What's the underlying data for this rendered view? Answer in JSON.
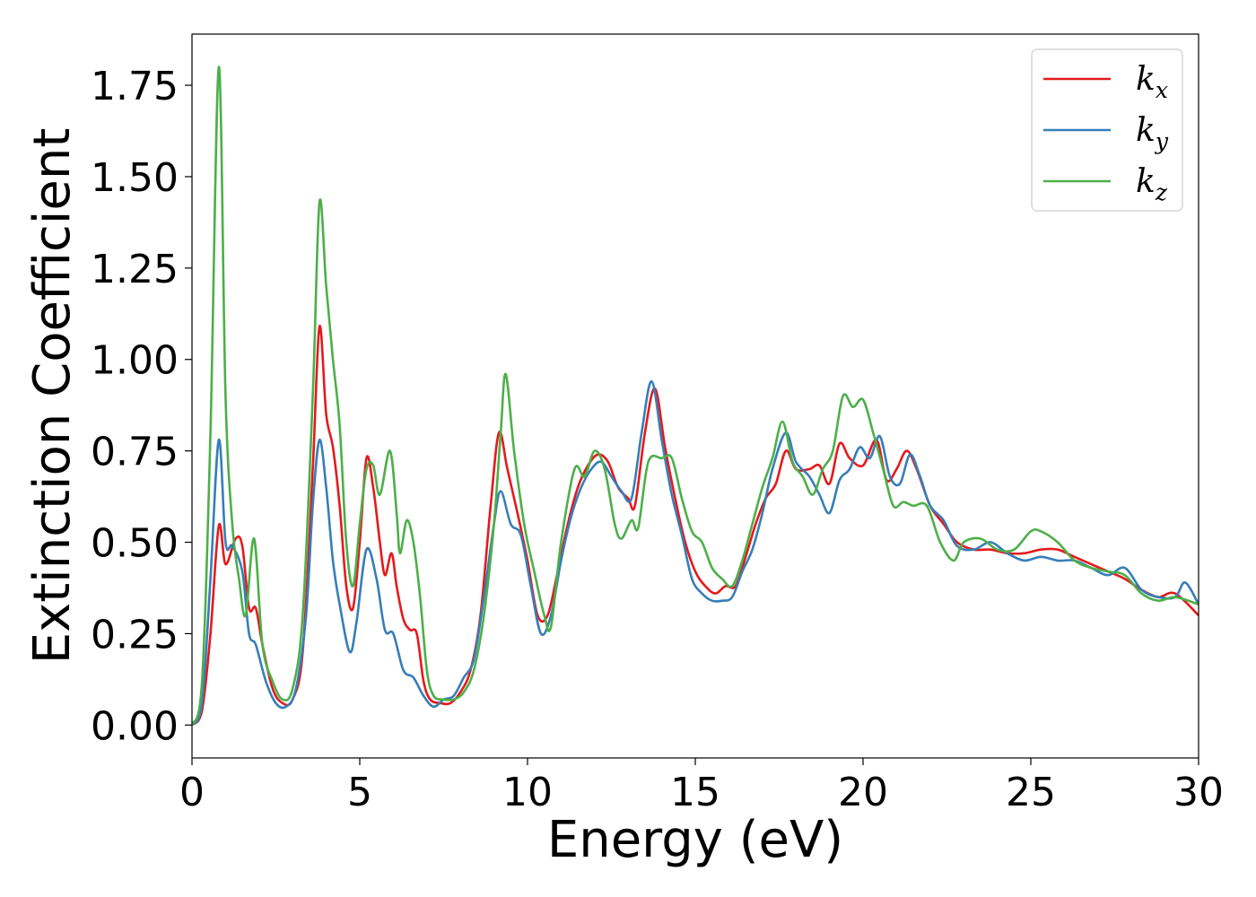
{
  "chart_data": {
    "type": "line",
    "xlabel": "Energy (eV)",
    "ylabel": "Extinction Coefficient",
    "xlim": [
      0,
      30
    ],
    "ylim": [
      -0.09,
      1.89
    ],
    "xticks": [
      {
        "value": 0,
        "label": "0"
      },
      {
        "value": 5,
        "label": "5"
      },
      {
        "value": 10,
        "label": "10"
      },
      {
        "value": 15,
        "label": "15"
      },
      {
        "value": 20,
        "label": "20"
      },
      {
        "value": 25,
        "label": "25"
      },
      {
        "value": 30,
        "label": "30"
      }
    ],
    "yticks": [
      {
        "value": 0.0,
        "label": "0.00"
      },
      {
        "value": 0.25,
        "label": "0.25"
      },
      {
        "value": 0.5,
        "label": "0.50"
      },
      {
        "value": 0.75,
        "label": "0.75"
      },
      {
        "value": 1.0,
        "label": "1.00"
      },
      {
        "value": 1.25,
        "label": "1.25"
      },
      {
        "value": 1.5,
        "label": "1.50"
      },
      {
        "value": 1.75,
        "label": "1.75"
      }
    ],
    "grid": false,
    "legend_position": "top-right",
    "series": [
      {
        "name": "k",
        "subscript": "x",
        "color": "#e41a1c",
        "points": [
          [
            0,
            0.0
          ],
          [
            0.3,
            0.04
          ],
          [
            0.55,
            0.25
          ],
          [
            0.8,
            0.545
          ],
          [
            1.0,
            0.44
          ],
          [
            1.3,
            0.51
          ],
          [
            1.5,
            0.49
          ],
          [
            1.7,
            0.32
          ],
          [
            1.9,
            0.32
          ],
          [
            2.1,
            0.22
          ],
          [
            2.4,
            0.1
          ],
          [
            2.7,
            0.06
          ],
          [
            3.0,
            0.07
          ],
          [
            3.3,
            0.2
          ],
          [
            3.6,
            0.7
          ],
          [
            3.8,
            1.09
          ],
          [
            4.0,
            0.85
          ],
          [
            4.2,
            0.76
          ],
          [
            4.4,
            0.6
          ],
          [
            4.6,
            0.38
          ],
          [
            4.8,
            0.32
          ],
          [
            5.0,
            0.5
          ],
          [
            5.2,
            0.73
          ],
          [
            5.4,
            0.65
          ],
          [
            5.6,
            0.5
          ],
          [
            5.75,
            0.41
          ],
          [
            5.95,
            0.47
          ],
          [
            6.1,
            0.38
          ],
          [
            6.3,
            0.29
          ],
          [
            6.5,
            0.26
          ],
          [
            6.7,
            0.25
          ],
          [
            6.9,
            0.12
          ],
          [
            7.1,
            0.07
          ],
          [
            7.4,
            0.06
          ],
          [
            7.7,
            0.06
          ],
          [
            8.0,
            0.09
          ],
          [
            8.3,
            0.15
          ],
          [
            8.6,
            0.3
          ],
          [
            8.9,
            0.6
          ],
          [
            9.15,
            0.8
          ],
          [
            9.4,
            0.7
          ],
          [
            9.7,
            0.58
          ],
          [
            10.0,
            0.45
          ],
          [
            10.3,
            0.3
          ],
          [
            10.6,
            0.3
          ],
          [
            10.9,
            0.42
          ],
          [
            11.2,
            0.55
          ],
          [
            11.5,
            0.65
          ],
          [
            11.8,
            0.71
          ],
          [
            12.1,
            0.74
          ],
          [
            12.4,
            0.72
          ],
          [
            12.7,
            0.65
          ],
          [
            13.0,
            0.62
          ],
          [
            13.2,
            0.6
          ],
          [
            13.5,
            0.8
          ],
          [
            13.8,
            0.92
          ],
          [
            14.1,
            0.76
          ],
          [
            14.4,
            0.62
          ],
          [
            14.7,
            0.5
          ],
          [
            15.0,
            0.42
          ],
          [
            15.3,
            0.38
          ],
          [
            15.6,
            0.36
          ],
          [
            15.9,
            0.38
          ],
          [
            16.2,
            0.38
          ],
          [
            16.5,
            0.46
          ],
          [
            16.8,
            0.55
          ],
          [
            17.1,
            0.62
          ],
          [
            17.4,
            0.66
          ],
          [
            17.7,
            0.75
          ],
          [
            18.0,
            0.7
          ],
          [
            18.4,
            0.7
          ],
          [
            18.7,
            0.71
          ],
          [
            19.0,
            0.66
          ],
          [
            19.3,
            0.77
          ],
          [
            19.6,
            0.73
          ],
          [
            20.0,
            0.71
          ],
          [
            20.4,
            0.78
          ],
          [
            20.7,
            0.67
          ],
          [
            21.0,
            0.7
          ],
          [
            21.3,
            0.75
          ],
          [
            21.6,
            0.7
          ],
          [
            22.0,
            0.6
          ],
          [
            22.4,
            0.55
          ],
          [
            22.8,
            0.5
          ],
          [
            23.3,
            0.48
          ],
          [
            23.8,
            0.48
          ],
          [
            24.3,
            0.47
          ],
          [
            24.8,
            0.47
          ],
          [
            25.3,
            0.48
          ],
          [
            25.8,
            0.48
          ],
          [
            26.3,
            0.46
          ],
          [
            26.8,
            0.44
          ],
          [
            27.3,
            0.42
          ],
          [
            27.8,
            0.4
          ],
          [
            28.3,
            0.37
          ],
          [
            28.8,
            0.35
          ],
          [
            29.3,
            0.36
          ],
          [
            30,
            0.3
          ]
        ]
      },
      {
        "name": "k",
        "subscript": "y",
        "color": "#377eb8",
        "points": [
          [
            0,
            0.0
          ],
          [
            0.3,
            0.06
          ],
          [
            0.55,
            0.4
          ],
          [
            0.8,
            0.78
          ],
          [
            1.0,
            0.5
          ],
          [
            1.2,
            0.49
          ],
          [
            1.5,
            0.42
          ],
          [
            1.7,
            0.25
          ],
          [
            1.9,
            0.22
          ],
          [
            2.2,
            0.12
          ],
          [
            2.5,
            0.06
          ],
          [
            2.8,
            0.05
          ],
          [
            3.1,
            0.1
          ],
          [
            3.4,
            0.3
          ],
          [
            3.6,
            0.6
          ],
          [
            3.8,
            0.78
          ],
          [
            4.0,
            0.65
          ],
          [
            4.2,
            0.45
          ],
          [
            4.4,
            0.33
          ],
          [
            4.7,
            0.2
          ],
          [
            4.9,
            0.28
          ],
          [
            5.2,
            0.48
          ],
          [
            5.5,
            0.4
          ],
          [
            5.75,
            0.26
          ],
          [
            6.0,
            0.25
          ],
          [
            6.3,
            0.15
          ],
          [
            6.6,
            0.13
          ],
          [
            6.9,
            0.08
          ],
          [
            7.2,
            0.05
          ],
          [
            7.5,
            0.07
          ],
          [
            7.8,
            0.08
          ],
          [
            8.1,
            0.13
          ],
          [
            8.4,
            0.18
          ],
          [
            8.7,
            0.35
          ],
          [
            9.0,
            0.55
          ],
          [
            9.2,
            0.64
          ],
          [
            9.5,
            0.55
          ],
          [
            9.8,
            0.52
          ],
          [
            10.1,
            0.38
          ],
          [
            10.4,
            0.25
          ],
          [
            10.7,
            0.3
          ],
          [
            11.0,
            0.45
          ],
          [
            11.3,
            0.57
          ],
          [
            11.6,
            0.65
          ],
          [
            11.9,
            0.7
          ],
          [
            12.2,
            0.72
          ],
          [
            12.5,
            0.68
          ],
          [
            12.8,
            0.64
          ],
          [
            13.1,
            0.62
          ],
          [
            13.4,
            0.8
          ],
          [
            13.7,
            0.94
          ],
          [
            14.0,
            0.78
          ],
          [
            14.3,
            0.63
          ],
          [
            14.6,
            0.52
          ],
          [
            14.9,
            0.4
          ],
          [
            15.2,
            0.36
          ],
          [
            15.5,
            0.34
          ],
          [
            15.8,
            0.34
          ],
          [
            16.1,
            0.35
          ],
          [
            16.4,
            0.42
          ],
          [
            16.7,
            0.48
          ],
          [
            17.0,
            0.58
          ],
          [
            17.3,
            0.7
          ],
          [
            17.7,
            0.8
          ],
          [
            18.0,
            0.72
          ],
          [
            18.4,
            0.68
          ],
          [
            18.7,
            0.63
          ],
          [
            19.0,
            0.58
          ],
          [
            19.3,
            0.67
          ],
          [
            19.6,
            0.7
          ],
          [
            19.9,
            0.76
          ],
          [
            20.2,
            0.73
          ],
          [
            20.5,
            0.79
          ],
          [
            20.8,
            0.68
          ],
          [
            21.1,
            0.66
          ],
          [
            21.4,
            0.74
          ],
          [
            21.7,
            0.68
          ],
          [
            22.0,
            0.6
          ],
          [
            22.4,
            0.56
          ],
          [
            22.8,
            0.49
          ],
          [
            23.3,
            0.48
          ],
          [
            23.8,
            0.5
          ],
          [
            24.3,
            0.47
          ],
          [
            24.8,
            0.45
          ],
          [
            25.3,
            0.46
          ],
          [
            25.8,
            0.45
          ],
          [
            26.3,
            0.45
          ],
          [
            26.8,
            0.43
          ],
          [
            27.3,
            0.41
          ],
          [
            27.8,
            0.43
          ],
          [
            28.3,
            0.37
          ],
          [
            28.8,
            0.35
          ],
          [
            29.3,
            0.35
          ],
          [
            29.6,
            0.39
          ],
          [
            30,
            0.33
          ]
        ]
      },
      {
        "name": "k",
        "subscript": "z",
        "color": "#4daf4a",
        "points": [
          [
            0,
            0.0
          ],
          [
            0.3,
            0.12
          ],
          [
            0.55,
            0.8
          ],
          [
            0.8,
            1.8
          ],
          [
            1.0,
            0.9
          ],
          [
            1.2,
            0.55
          ],
          [
            1.4,
            0.4
          ],
          [
            1.6,
            0.3
          ],
          [
            1.85,
            0.51
          ],
          [
            2.1,
            0.22
          ],
          [
            2.4,
            0.12
          ],
          [
            2.7,
            0.07
          ],
          [
            3.0,
            0.1
          ],
          [
            3.3,
            0.3
          ],
          [
            3.6,
            0.9
          ],
          [
            3.8,
            1.43
          ],
          [
            4.0,
            1.2
          ],
          [
            4.2,
            1.0
          ],
          [
            4.4,
            0.82
          ],
          [
            4.6,
            0.5
          ],
          [
            4.8,
            0.38
          ],
          [
            5.0,
            0.55
          ],
          [
            5.2,
            0.7
          ],
          [
            5.4,
            0.71
          ],
          [
            5.6,
            0.63
          ],
          [
            5.9,
            0.75
          ],
          [
            6.1,
            0.58
          ],
          [
            6.2,
            0.47
          ],
          [
            6.4,
            0.56
          ],
          [
            6.6,
            0.5
          ],
          [
            6.8,
            0.35
          ],
          [
            7.0,
            0.15
          ],
          [
            7.2,
            0.08
          ],
          [
            7.5,
            0.07
          ],
          [
            7.8,
            0.07
          ],
          [
            8.1,
            0.09
          ],
          [
            8.4,
            0.15
          ],
          [
            8.7,
            0.3
          ],
          [
            9.0,
            0.55
          ],
          [
            9.2,
            0.8
          ],
          [
            9.35,
            0.96
          ],
          [
            9.6,
            0.75
          ],
          [
            9.9,
            0.55
          ],
          [
            10.2,
            0.42
          ],
          [
            10.5,
            0.3
          ],
          [
            10.7,
            0.27
          ],
          [
            11.0,
            0.5
          ],
          [
            11.4,
            0.7
          ],
          [
            11.7,
            0.68
          ],
          [
            12.0,
            0.75
          ],
          [
            12.3,
            0.7
          ],
          [
            12.6,
            0.55
          ],
          [
            12.8,
            0.51
          ],
          [
            13.1,
            0.56
          ],
          [
            13.3,
            0.54
          ],
          [
            13.6,
            0.72
          ],
          [
            14.0,
            0.73
          ],
          [
            14.3,
            0.73
          ],
          [
            14.6,
            0.62
          ],
          [
            14.9,
            0.53
          ],
          [
            15.2,
            0.5
          ],
          [
            15.5,
            0.43
          ],
          [
            15.8,
            0.4
          ],
          [
            16.1,
            0.38
          ],
          [
            16.4,
            0.45
          ],
          [
            16.7,
            0.55
          ],
          [
            17.0,
            0.65
          ],
          [
            17.3,
            0.73
          ],
          [
            17.6,
            0.83
          ],
          [
            17.9,
            0.72
          ],
          [
            18.2,
            0.68
          ],
          [
            18.5,
            0.63
          ],
          [
            18.8,
            0.7
          ],
          [
            19.1,
            0.75
          ],
          [
            19.4,
            0.9
          ],
          [
            19.7,
            0.87
          ],
          [
            20.0,
            0.89
          ],
          [
            20.3,
            0.8
          ],
          [
            20.6,
            0.7
          ],
          [
            20.9,
            0.6
          ],
          [
            21.2,
            0.61
          ],
          [
            21.5,
            0.6
          ],
          [
            21.9,
            0.6
          ],
          [
            22.3,
            0.5
          ],
          [
            22.7,
            0.45
          ],
          [
            23.0,
            0.5
          ],
          [
            23.5,
            0.51
          ],
          [
            24.0,
            0.48
          ],
          [
            24.5,
            0.48
          ],
          [
            25.0,
            0.53
          ],
          [
            25.3,
            0.53
          ],
          [
            25.8,
            0.5
          ],
          [
            26.3,
            0.45
          ],
          [
            26.8,
            0.43
          ],
          [
            27.3,
            0.42
          ],
          [
            27.8,
            0.41
          ],
          [
            28.3,
            0.36
          ],
          [
            28.8,
            0.34
          ],
          [
            29.3,
            0.35
          ],
          [
            30,
            0.33
          ]
        ]
      }
    ]
  }
}
